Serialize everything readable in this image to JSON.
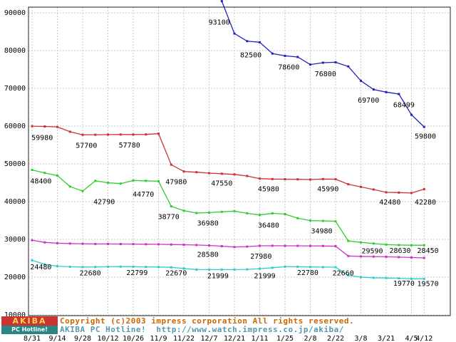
{
  "chart_data": {
    "type": "line",
    "title": "",
    "grid": true,
    "legend": false,
    "y_axis": {
      "min": 10000,
      "max": 90000,
      "ticks": [
        {
          "label": "90000",
          "value": 90000
        },
        {
          "label": "80000",
          "value": 80000
        },
        {
          "label": "70000",
          "value": 70000
        },
        {
          "label": "60000",
          "value": 60000
        },
        {
          "label": "50000",
          "value": 50000
        },
        {
          "label": "40000",
          "value": 40000
        },
        {
          "label": "30000",
          "value": 30000
        },
        {
          "label": "20000",
          "value": 20000
        },
        {
          "label": "10000",
          "value": 10000
        }
      ]
    },
    "x_axis": {
      "ticks": [
        {
          "label": "8/31",
          "w": 0
        },
        {
          "label": "9/14",
          "w": 2
        },
        {
          "label": "9/28",
          "w": 4
        },
        {
          "label": "10/12",
          "w": 6
        },
        {
          "label": "10/26",
          "w": 8
        },
        {
          "label": "11/9",
          "w": 10
        },
        {
          "label": "11/22",
          "w": 12
        },
        {
          "label": "12/7",
          "w": 14
        },
        {
          "label": "12/21",
          "w": 16
        },
        {
          "label": "1/11",
          "w": 18
        },
        {
          "label": "1/25",
          "w": 20
        },
        {
          "label": "2/8",
          "w": 22
        },
        {
          "label": "2/22",
          "w": 24
        },
        {
          "label": "3/8",
          "w": 26
        },
        {
          "label": "3/21",
          "w": 28
        },
        {
          "label": "4/5",
          "w": 30
        },
        {
          "label": "4/12",
          "w": 31
        }
      ]
    },
    "series": [
      {
        "name": "blue",
        "color": "#2222bb",
        "points": [
          [
            15,
            93100
          ],
          [
            16,
            84500
          ],
          [
            17,
            82500
          ],
          [
            18,
            82200
          ],
          [
            19,
            79200
          ],
          [
            20,
            78600
          ],
          [
            21,
            78300
          ],
          [
            22,
            76300
          ],
          [
            23,
            76800
          ],
          [
            24,
            76900
          ],
          [
            25,
            75800
          ],
          [
            26,
            72000
          ],
          [
            27,
            69700
          ],
          [
            28,
            69000
          ],
          [
            29,
            68499
          ],
          [
            30,
            63000
          ],
          [
            31,
            59800
          ]
        ]
      },
      {
        "name": "red",
        "color": "#cc3333",
        "points": [
          [
            0,
            59980
          ],
          [
            1,
            59900
          ],
          [
            2,
            59800
          ],
          [
            3,
            58500
          ],
          [
            4,
            57700
          ],
          [
            5,
            57720
          ],
          [
            6,
            57750
          ],
          [
            7,
            57780
          ],
          [
            8,
            57780
          ],
          [
            9,
            57800
          ],
          [
            10,
            58000
          ],
          [
            11,
            49800
          ],
          [
            12,
            47980
          ],
          [
            13,
            47800
          ],
          [
            14,
            47550
          ],
          [
            15,
            47400
          ],
          [
            16,
            47200
          ],
          [
            17,
            46800
          ],
          [
            18,
            46100
          ],
          [
            19,
            45980
          ],
          [
            20,
            45950
          ],
          [
            21,
            45900
          ],
          [
            22,
            45850
          ],
          [
            23,
            45990
          ],
          [
            24,
            45950
          ],
          [
            25,
            44600
          ],
          [
            26,
            43900
          ],
          [
            27,
            43200
          ],
          [
            28,
            42480
          ],
          [
            29,
            42400
          ],
          [
            30,
            42280
          ],
          [
            31,
            43300
          ]
        ]
      },
      {
        "name": "green",
        "color": "#33cc33",
        "points": [
          [
            0,
            48400
          ],
          [
            1,
            47600
          ],
          [
            2,
            46900
          ],
          [
            3,
            44000
          ],
          [
            4,
            42790
          ],
          [
            5,
            45500
          ],
          [
            6,
            45000
          ],
          [
            7,
            44770
          ],
          [
            8,
            45600
          ],
          [
            9,
            45500
          ],
          [
            10,
            45400
          ],
          [
            11,
            38770
          ],
          [
            12,
            37600
          ],
          [
            13,
            36980
          ],
          [
            14,
            37100
          ],
          [
            15,
            37300
          ],
          [
            16,
            37500
          ],
          [
            17,
            36900
          ],
          [
            18,
            36480
          ],
          [
            19,
            36900
          ],
          [
            20,
            36700
          ],
          [
            21,
            35600
          ],
          [
            22,
            34980
          ],
          [
            23,
            34900
          ],
          [
            24,
            34800
          ],
          [
            25,
            29590
          ],
          [
            26,
            29200
          ],
          [
            27,
            28900
          ],
          [
            28,
            28630
          ],
          [
            29,
            28500
          ],
          [
            30,
            28450
          ],
          [
            31,
            28450
          ]
        ]
      },
      {
        "name": "magenta",
        "color": "#cc33cc",
        "points": [
          [
            0,
            29800
          ],
          [
            1,
            29200
          ],
          [
            2,
            29000
          ],
          [
            3,
            28900
          ],
          [
            4,
            28850
          ],
          [
            5,
            28800
          ],
          [
            6,
            28800
          ],
          [
            7,
            28780
          ],
          [
            8,
            28750
          ],
          [
            9,
            28720
          ],
          [
            10,
            28700
          ],
          [
            11,
            28650
          ],
          [
            12,
            28580
          ],
          [
            13,
            28500
          ],
          [
            14,
            28400
          ],
          [
            15,
            28200
          ],
          [
            16,
            27980
          ],
          [
            17,
            28100
          ],
          [
            18,
            28300
          ],
          [
            19,
            28320
          ],
          [
            20,
            28300
          ],
          [
            21,
            28300
          ],
          [
            22,
            28280
          ],
          [
            23,
            28260
          ],
          [
            24,
            28200
          ],
          [
            25,
            25600
          ],
          [
            26,
            25500
          ],
          [
            27,
            25450
          ],
          [
            28,
            25400
          ],
          [
            29,
            25300
          ],
          [
            30,
            25200
          ],
          [
            31,
            25100
          ]
        ]
      },
      {
        "name": "cyan",
        "color": "#33cccc",
        "points": [
          [
            0,
            24480
          ],
          [
            1,
            23400
          ],
          [
            2,
            22900
          ],
          [
            3,
            22750
          ],
          [
            4,
            22680
          ],
          [
            5,
            22700
          ],
          [
            6,
            22750
          ],
          [
            7,
            22799
          ],
          [
            8,
            22780
          ],
          [
            9,
            22720
          ],
          [
            10,
            22670
          ],
          [
            11,
            22600
          ],
          [
            12,
            22300
          ],
          [
            13,
            21999
          ],
          [
            14,
            22000
          ],
          [
            15,
            22000
          ],
          [
            16,
            21999
          ],
          [
            17,
            22050
          ],
          [
            18,
            22250
          ],
          [
            19,
            22500
          ],
          [
            20,
            22780
          ],
          [
            21,
            22760
          ],
          [
            22,
            22700
          ],
          [
            23,
            22660
          ],
          [
            24,
            22650
          ],
          [
            25,
            20500
          ],
          [
            26,
            20000
          ],
          [
            27,
            19850
          ],
          [
            28,
            19770
          ],
          [
            29,
            19700
          ],
          [
            30,
            19570
          ],
          [
            31,
            19570
          ]
        ]
      }
    ],
    "point_labels": [
      {
        "text": "93100",
        "w": 14.8,
        "v": 87500
      },
      {
        "text": "82500",
        "w": 17.3,
        "v": 78800
      },
      {
        "text": "78600",
        "w": 20.3,
        "v": 75600
      },
      {
        "text": "76800",
        "w": 23.2,
        "v": 73800
      },
      {
        "text": "69700",
        "w": 26.6,
        "v": 66800
      },
      {
        "text": "68499",
        "w": 29.4,
        "v": 65600
      },
      {
        "text": "59800",
        "w": 31.1,
        "v": 57300
      },
      {
        "text": "59980",
        "w": 0.8,
        "v": 56900
      },
      {
        "text": "57700",
        "w": 4.3,
        "v": 54800
      },
      {
        "text": "57780",
        "w": 7.7,
        "v": 54900
      },
      {
        "text": "47980",
        "w": 11.4,
        "v": 45200
      },
      {
        "text": "47550",
        "w": 15.0,
        "v": 44800
      },
      {
        "text": "45980",
        "w": 18.7,
        "v": 43300
      },
      {
        "text": "45990",
        "w": 23.4,
        "v": 43300
      },
      {
        "text": "42480",
        "w": 28.3,
        "v": 39800
      },
      {
        "text": "42280",
        "w": 31.1,
        "v": 39800
      },
      {
        "text": "48400",
        "w": 0.7,
        "v": 45400
      },
      {
        "text": "42790",
        "w": 5.7,
        "v": 39900
      },
      {
        "text": "44770",
        "w": 8.8,
        "v": 41900
      },
      {
        "text": "38770",
        "w": 10.8,
        "v": 35900
      },
      {
        "text": "36980",
        "w": 13.9,
        "v": 34200
      },
      {
        "text": "36480",
        "w": 18.7,
        "v": 33700
      },
      {
        "text": "34980",
        "w": 22.9,
        "v": 32200
      },
      {
        "text": "29590",
        "w": 26.9,
        "v": 26900
      },
      {
        "text": "28630",
        "w": 29.1,
        "v": 27000
      },
      {
        "text": "28450",
        "w": 31.3,
        "v": 27000
      },
      {
        "text": "28580",
        "w": 13.9,
        "v": 25900
      },
      {
        "text": "27980",
        "w": 18.1,
        "v": 25500
      },
      {
        "text": "24480",
        "w": 0.7,
        "v": 22600
      },
      {
        "text": "22680",
        "w": 4.6,
        "v": 21000
      },
      {
        "text": "22799",
        "w": 8.3,
        "v": 21100
      },
      {
        "text": "22670",
        "w": 11.4,
        "v": 21000
      },
      {
        "text": "21999",
        "w": 14.7,
        "v": 20300
      },
      {
        "text": "21999",
        "w": 18.4,
        "v": 20300
      },
      {
        "text": "22780",
        "w": 21.8,
        "v": 21100
      },
      {
        "text": "22660",
        "w": 24.6,
        "v": 21000
      },
      {
        "text": "19770",
        "w": 29.4,
        "v": 18300
      },
      {
        "text": "19570",
        "w": 31.3,
        "v": 18200
      }
    ],
    "gridline_color": "#c9c9c9",
    "border_color": "#222222",
    "label_color": "#000000"
  },
  "footer": {
    "logo": {
      "top": "AKIBA",
      "bottom": "PC Hotline!",
      "top_bg": "#cc3333",
      "top_color": "#ffd24d",
      "bottom_bg": "#2a8585",
      "bottom_color": "#ffffff"
    },
    "copyright": "Copyright (c)2003 impress corporation All rights reserved.",
    "site_line": "AKIBA PC Hotline!  http://www.watch.impress.co.jp/akiba/",
    "copyright_color": "#cc6600",
    "site_color": "#5599aa"
  }
}
